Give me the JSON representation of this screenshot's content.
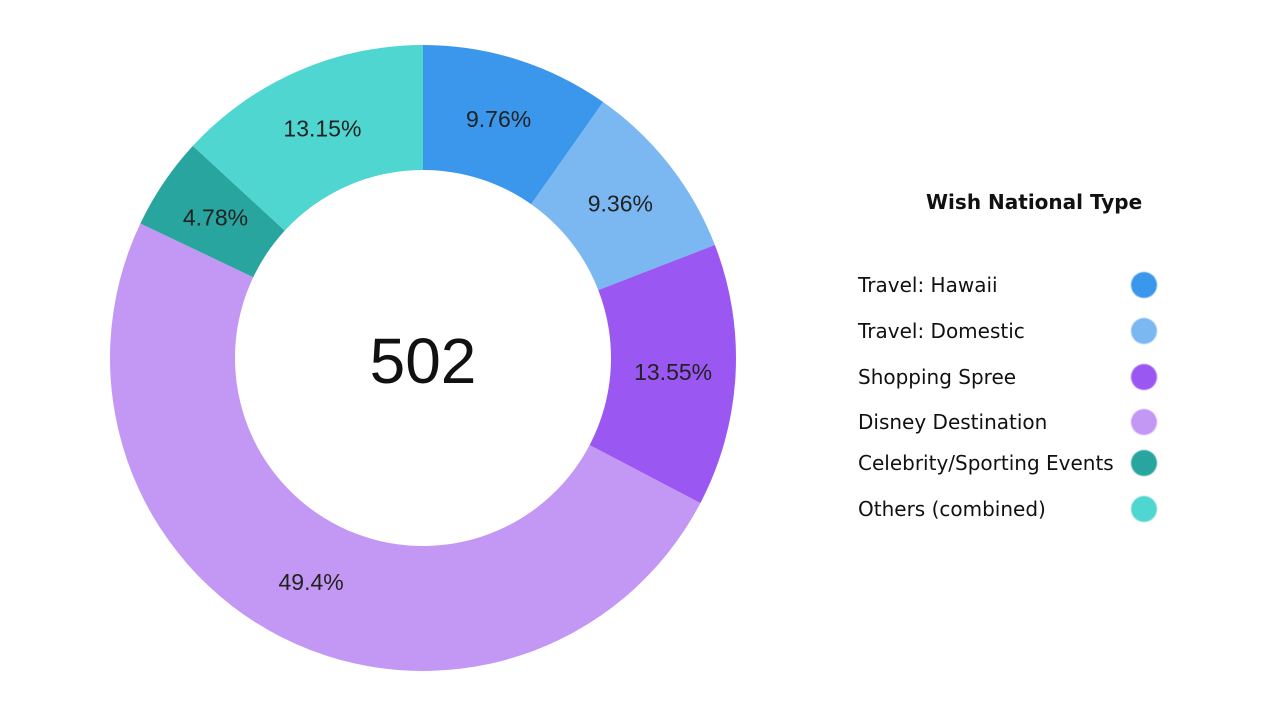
{
  "chart_data": {
    "type": "pie",
    "style": "donut",
    "center_text": "502",
    "legend_title": "Wish National Type",
    "legend_placement": "right",
    "slices": [
      {
        "label": "Travel: Hawaii",
        "value": 9.76,
        "display": "9.76%",
        "color": "#3a97ec"
      },
      {
        "label": "Travel: Domestic",
        "value": 9.36,
        "display": "9.36%",
        "color": "#7bb8f2"
      },
      {
        "label": "Shopping Spree",
        "value": 13.55,
        "display": "13.55%",
        "color": "#9b57f2"
      },
      {
        "label": "Disney Destination",
        "value": 49.4,
        "display": "49.4%",
        "color": "#c398f4"
      },
      {
        "label": "Celebrity/Sporting Events",
        "value": 4.78,
        "display": "4.78%",
        "color": "#27a59e"
      },
      {
        "label": "Others (combined)",
        "value": 13.15,
        "display": "13.15%",
        "color": "#50d6d0"
      }
    ]
  }
}
